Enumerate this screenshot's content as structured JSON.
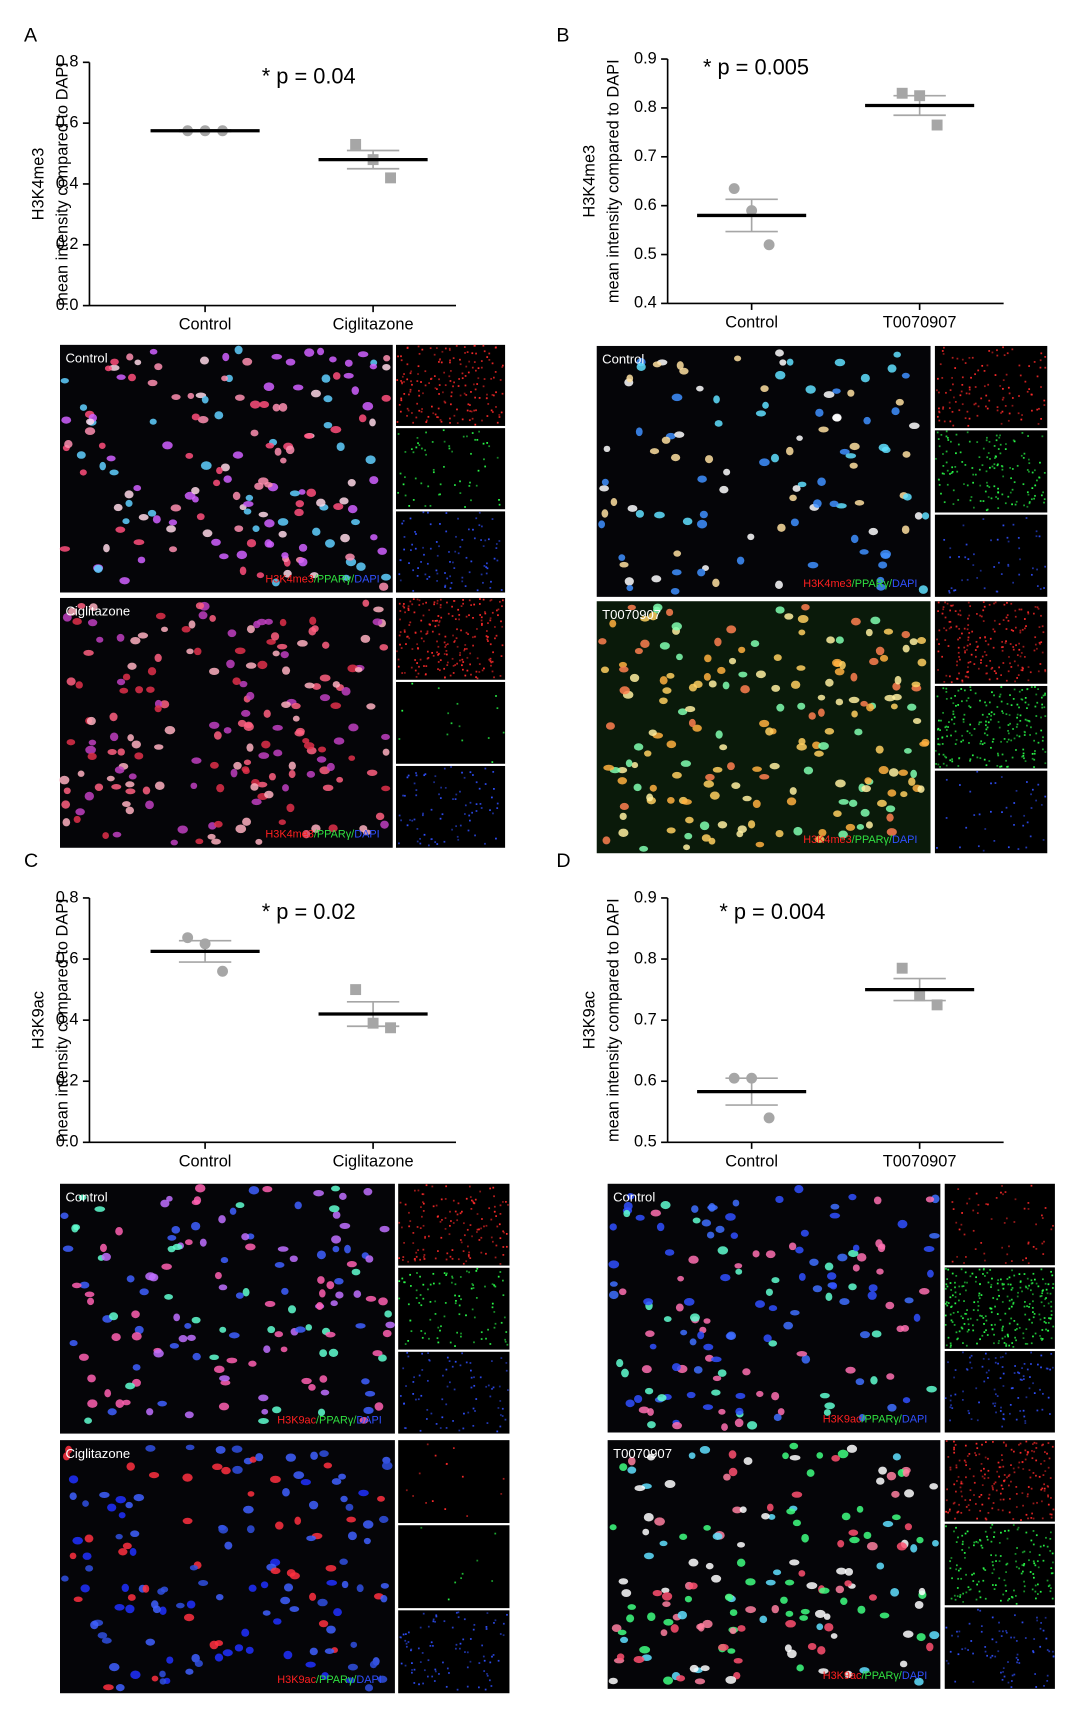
{
  "chart_data": [
    {
      "type": "dotplot",
      "label": "A",
      "annotation": "* p = 0.04",
      "ylabel": [
        "H3K4me3",
        "mean intensity compared to DAPI"
      ],
      "categories": [
        "Control",
        "Ciglitazone"
      ],
      "values": [
        [
          0.575,
          0.575,
          0.575
        ],
        [
          0.53,
          0.48,
          0.42
        ]
      ],
      "means": [
        0.575,
        0.48
      ],
      "sems": [
        0.003,
        0.03
      ],
      "markers": [
        "circle",
        "square"
      ],
      "color": "#a6a6a6",
      "ylim": [
        0,
        0.8
      ],
      "yticks": [
        {
          "value": 0,
          "label": "0.0"
        },
        0.2,
        0.4,
        0.6,
        0.8
      ]
    },
    {
      "type": "dotplot",
      "label": "B",
      "annotation": "* p = 0.005",
      "ylabel": [
        "H3K4me3",
        "mean intensity compared to DAPI"
      ],
      "categories": [
        "Control",
        "T0070907"
      ],
      "values": [
        [
          0.635,
          0.59,
          0.52
        ],
        [
          0.83,
          0.825,
          0.765
        ]
      ],
      "means": [
        0.58,
        0.805
      ],
      "sems": [
        0.033,
        0.02
      ],
      "markers": [
        "circle",
        "square"
      ],
      "color": "#a6a6a6",
      "ylim": [
        0.4,
        0.9
      ],
      "yticks": [
        0.4,
        0.5,
        0.6,
        0.7,
        0.8,
        0.9
      ]
    },
    {
      "type": "dotplot",
      "label": "C",
      "annotation": "* p = 0.02",
      "ylabel": [
        "H3K9ac",
        "mean intensity compared to DAPI"
      ],
      "categories": [
        "Control",
        "Ciglitazone"
      ],
      "values": [
        [
          0.67,
          0.65,
          0.56
        ],
        [
          0.5,
          0.39,
          0.375
        ]
      ],
      "means": [
        0.625,
        0.42
      ],
      "sems": [
        0.035,
        0.04
      ],
      "markers": [
        "circle",
        "square"
      ],
      "color": "#a6a6a6",
      "ylim": [
        0,
        0.8
      ],
      "yticks": [
        {
          "value": 0,
          "label": "0.0"
        },
        0.2,
        0.4,
        0.6,
        0.8
      ]
    },
    {
      "type": "dotplot",
      "label": "D",
      "annotation": "* p = 0.004",
      "ylabel": [
        "H3K9ac",
        "mean intensity compared to DAPI"
      ],
      "categories": [
        "Control",
        "T0070907"
      ],
      "values": [
        [
          0.605,
          0.605,
          0.54
        ],
        [
          0.785,
          0.74,
          0.725
        ]
      ],
      "means": [
        0.583,
        0.75
      ],
      "sems": [
        0.022,
        0.018
      ],
      "markers": [
        "circle",
        "square"
      ],
      "color": "#a6a6a6",
      "ylim": [
        0.5,
        0.9
      ],
      "yticks": [
        0.5,
        0.6,
        0.7,
        0.8,
        0.9
      ]
    }
  ],
  "micrographs": [
    {
      "label": "Control",
      "stain": [
        "H3K4me3",
        "/PPARγ/",
        "DAPI"
      ]
    },
    {
      "label": "Ciglitazone",
      "stain": [
        "H3K4me3",
        "/PPARγ/",
        "DAPI"
      ]
    },
    {
      "label": "Control",
      "stain": [
        "H3K4me3",
        "/PPARγ/",
        "DAPI"
      ]
    },
    {
      "label": "T0070907",
      "stain": [
        "H3K4me3",
        "/PPARγ/",
        "DAPI"
      ]
    },
    {
      "label": "Control",
      "stain": [
        "H3K9ac",
        "/PPARγ/",
        "DAPI"
      ]
    },
    {
      "label": "Ciglitazone",
      "stain": [
        "H3K9ac",
        "/PPARγ/",
        "DAPI"
      ]
    },
    {
      "label": "Control",
      "stain": [
        "H3K9ac",
        "/PPARγ/",
        "DAPI"
      ]
    },
    {
      "label": "T0070907",
      "stain": [
        "H3K9ac",
        "/PPARγ/",
        "DAPI"
      ]
    }
  ]
}
